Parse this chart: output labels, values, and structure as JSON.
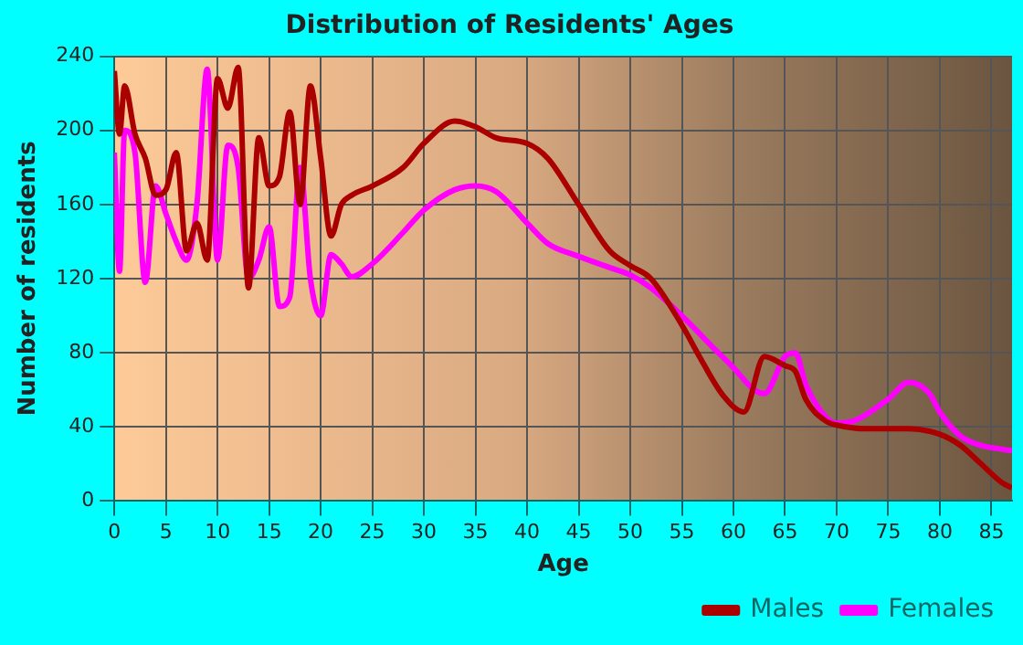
{
  "chart_data": {
    "type": "line",
    "title": "Distribution of Residents' Ages",
    "xlabel": "Age",
    "ylabel": "Number of residents",
    "xlim": [
      0,
      87
    ],
    "xticks": [
      0,
      5,
      10,
      15,
      20,
      25,
      30,
      35,
      40,
      45,
      50,
      55,
      60,
      65,
      70,
      75,
      80,
      85
    ],
    "ylim": [
      0,
      240
    ],
    "yticks": [
      0,
      40,
      80,
      120,
      160,
      200,
      240
    ],
    "grid": true,
    "legend": "bottom",
    "marker": "none",
    "line_style": "solid",
    "series": [
      {
        "name": "Males",
        "color": "#aa0000",
        "x": [
          0,
          0.5,
          1,
          2,
          3,
          4,
          5,
          6,
          7,
          8,
          9,
          10,
          11,
          12,
          13,
          14,
          15,
          16,
          17,
          18,
          19,
          20,
          21,
          22,
          23,
          25,
          28,
          30,
          33,
          35,
          37,
          40,
          42,
          45,
          48,
          50,
          52,
          55,
          57,
          59,
          61,
          63,
          65,
          66,
          67,
          69,
          70,
          73,
          77,
          80,
          82,
          84,
          86,
          87
        ],
        "values": [
          232,
          198,
          224,
          198,
          185,
          165,
          168,
          188,
          135,
          150,
          130,
          228,
          212,
          234,
          115,
          196,
          170,
          175,
          210,
          160,
          224,
          185,
          143,
          160,
          165,
          170,
          180,
          193,
          205,
          202,
          196,
          193,
          185,
          160,
          135,
          127,
          120,
          95,
          75,
          57,
          48,
          78,
          73,
          70,
          55,
          43,
          41,
          39,
          39,
          36,
          30,
          20,
          10,
          7
        ]
      },
      {
        "name": "Females",
        "color": "#ff00ff",
        "x": [
          0,
          0.5,
          1,
          2,
          3,
          4,
          5,
          6,
          7,
          8,
          9,
          10,
          11,
          12,
          13,
          14,
          15,
          16,
          17,
          18,
          19,
          20,
          21,
          22,
          23,
          25,
          28,
          30,
          33,
          35,
          37,
          40,
          42,
          45,
          48,
          50,
          52,
          55,
          58,
          60,
          62,
          63,
          65,
          66,
          67,
          69,
          70,
          72,
          75,
          77,
          79,
          80,
          82,
          84,
          86,
          87
        ],
        "values": [
          188,
          124,
          200,
          188,
          118,
          170,
          155,
          140,
          130,
          160,
          233,
          130,
          192,
          180,
          120,
          130,
          148,
          105,
          110,
          180,
          120,
          100,
          133,
          128,
          121,
          128,
          145,
          157,
          168,
          170,
          167,
          150,
          139,
          132,
          126,
          122,
          115,
          100,
          83,
          72,
          60,
          58,
          78,
          80,
          63,
          45,
          42,
          44,
          55,
          64,
          58,
          48,
          35,
          30,
          28,
          27
        ]
      }
    ]
  }
}
